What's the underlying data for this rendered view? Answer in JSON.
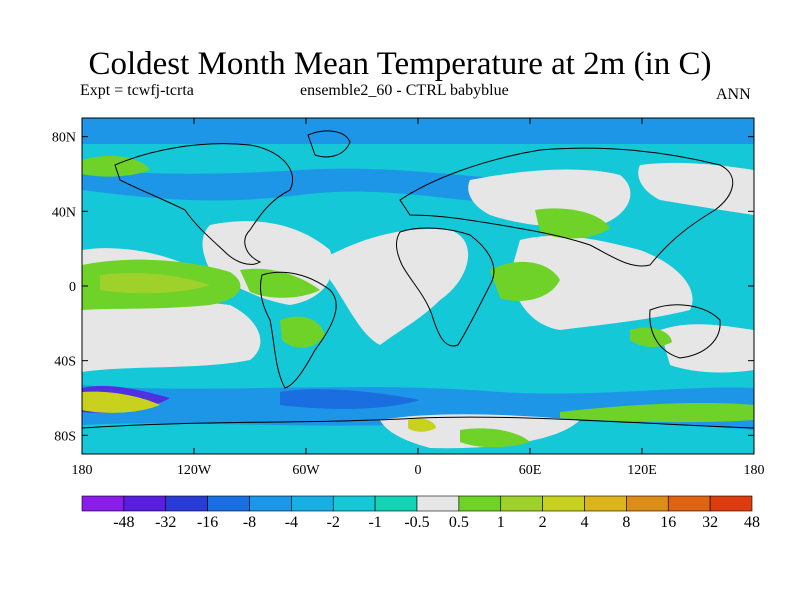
{
  "header": {
    "title": "Coldest Month Mean Temperature at 2m (in C)",
    "expt": "Expt = tcwfj-tcrta",
    "run": "ensemble2_60 - CTRL babyblue",
    "season": "ANN"
  },
  "axes": {
    "lat_ticks": [
      {
        "value": 80,
        "label": "80N"
      },
      {
        "value": 40,
        "label": "40N"
      },
      {
        "value": 0,
        "label": "0"
      },
      {
        "value": -40,
        "label": "40S"
      },
      {
        "value": -80,
        "label": "80S"
      }
    ],
    "lon_ticks": [
      {
        "value": -180,
        "label": "180"
      },
      {
        "value": -120,
        "label": "120W"
      },
      {
        "value": -60,
        "label": "60W"
      },
      {
        "value": 0,
        "label": "0"
      },
      {
        "value": 60,
        "label": "60E"
      },
      {
        "value": 120,
        "label": "120E"
      },
      {
        "value": 180,
        "label": "180"
      }
    ],
    "lon_range": [
      -180,
      180
    ],
    "lat_range": [
      -90,
      90
    ]
  },
  "colorbar": {
    "labels": [
      "-48",
      "-32",
      "-16",
      "-8",
      "-4",
      "-2",
      "-1",
      "-0.5",
      "0.5",
      "1",
      "2",
      "4",
      "8",
      "16",
      "32",
      "48"
    ],
    "colors": [
      "#8a1ee8",
      "#5a1ee0",
      "#2a3cd8",
      "#1a6ee0",
      "#1e96e8",
      "#18b0e4",
      "#14c8d8",
      "#14d2b4",
      "#e6e6e6",
      "#6ed228",
      "#9ed22a",
      "#c8d21e",
      "#dcb41c",
      "#dc8c18",
      "#dc6414",
      "#dc3c10"
    ]
  },
  "colors": {
    "neutral": "#e6e6e6",
    "cool_light": "#14c8d8",
    "cool_mid": "#18b0e4",
    "cool_deep": "#1e96e8",
    "warm_light": "#6ed228",
    "warm_mid": "#9ed22a",
    "warm_yellow": "#c8d21e"
  }
}
